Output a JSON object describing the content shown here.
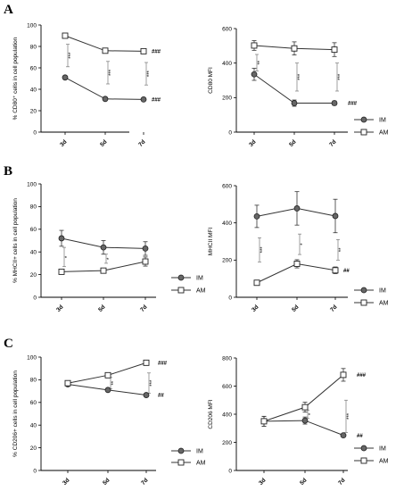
{
  "legend": {
    "im": "IM",
    "am": "AM"
  },
  "chart_data": [
    {
      "id": "A-left",
      "panel": "A",
      "type": "line",
      "ylabel": "% CD80⁺ cells in cell population",
      "ylim": [
        0,
        100
      ],
      "yticks": [
        0,
        20,
        40,
        60,
        80,
        100
      ],
      "categories": [
        "3d",
        "5d",
        "7d"
      ],
      "series": [
        {
          "name": "IM",
          "values": [
            51,
            31,
            30.5
          ],
          "errors": [
            1.5,
            1,
            1
          ],
          "end_label": "###"
        },
        {
          "name": "AM",
          "values": [
            90,
            76,
            75.5
          ],
          "errors": [
            1,
            1,
            1
          ],
          "end_label": "###"
        }
      ],
      "brackets": [
        {
          "at": 0,
          "low": 61,
          "high": 82,
          "label": "***"
        },
        {
          "at": 1,
          "low": 45,
          "high": 66,
          "label": "***"
        },
        {
          "at": 2,
          "low": 44,
          "high": 65,
          "label": "***"
        }
      ],
      "legend_shown": false
    },
    {
      "id": "A-right",
      "panel": "A",
      "type": "line",
      "ylabel": "CD80 MFI",
      "ylim": [
        0,
        600
      ],
      "yticks": [
        0,
        200,
        400,
        600
      ],
      "categories": [
        "3d",
        "5d",
        "7d"
      ],
      "series": [
        {
          "name": "IM",
          "values": [
            335,
            168,
            168
          ],
          "errors": [
            35,
            18,
            12
          ],
          "end_label": "###"
        },
        {
          "name": "AM",
          "values": [
            502,
            485,
            478
          ],
          "errors": [
            28,
            38,
            40
          ],
          "end_label": ""
        }
      ],
      "brackets": [
        {
          "at": 0,
          "low": 355,
          "high": 450,
          "label": "**"
        },
        {
          "at": 1,
          "low": 238,
          "high": 400,
          "label": "***"
        },
        {
          "at": 2,
          "low": 238,
          "high": 400,
          "label": "***"
        }
      ],
      "legend_shown": true
    },
    {
      "id": "B-left",
      "panel": "B",
      "type": "line",
      "ylabel": "% MHCII+ cells in cell population",
      "ylim": [
        0,
        100
      ],
      "yticks": [
        0,
        20,
        40,
        60,
        80,
        100
      ],
      "categories": [
        "3d",
        "5d",
        "7d"
      ],
      "series": [
        {
          "name": "IM",
          "values": [
            52,
            44,
            43
          ],
          "errors": [
            7,
            6,
            6
          ],
          "end_label": ""
        },
        {
          "name": "AM",
          "values": [
            22.5,
            23.5,
            31.5
          ],
          "errors": [
            2,
            2,
            4
          ],
          "end_label": ""
        }
      ],
      "brackets": [
        {
          "at": 0,
          "low": 27,
          "high": 44,
          "label": "*"
        },
        {
          "at": 1,
          "low": 30,
          "high": 38,
          "label": "*"
        },
        {
          "at": 2,
          "low": 0,
          "high": 0,
          "label": ""
        }
      ],
      "legend_shown": true
    },
    {
      "id": "B-right",
      "panel": "B",
      "type": "line",
      "ylabel": "MHCII MFI",
      "ylim": [
        0,
        600
      ],
      "yticks": [
        0,
        200,
        400,
        600
      ],
      "categories": [
        "3d",
        "5d",
        "7d"
      ],
      "series": [
        {
          "name": "IM",
          "values": [
            435,
            478,
            437
          ],
          "errors": [
            60,
            90,
            90
          ],
          "end_label": ""
        },
        {
          "name": "AM",
          "values": [
            78,
            180,
            145
          ],
          "errors": [
            6,
            22,
            18
          ],
          "end_label": "##"
        }
      ],
      "brackets": [
        {
          "at": 0,
          "low": 190,
          "high": 320,
          "label": "***"
        },
        {
          "at": 1,
          "low": 230,
          "high": 340,
          "label": "*"
        },
        {
          "at": 2,
          "low": 200,
          "high": 310,
          "label": "**"
        }
      ],
      "legend_shown": true
    },
    {
      "id": "C-left",
      "panel": "C",
      "type": "line",
      "ylabel": "% CD206+ cells in cell population",
      "ylim": [
        0,
        100
      ],
      "yticks": [
        0,
        20,
        40,
        60,
        80,
        100
      ],
      "categories": [
        "3d",
        "5d",
        "7d"
      ],
      "series": [
        {
          "name": "IM",
          "values": [
            76,
            71,
            66.5
          ],
          "errors": [
            1.5,
            1.5,
            1
          ],
          "end_label": "##"
        },
        {
          "name": "AM",
          "values": [
            77,
            84,
            95
          ],
          "errors": [
            1.5,
            1,
            1
          ],
          "end_label": "###"
        }
      ],
      "brackets": [
        {
          "at": 0,
          "low": 0,
          "high": 0,
          "label": ""
        },
        {
          "at": 1,
          "low": 72,
          "high": 82,
          "label": "**"
        },
        {
          "at": 2,
          "low": 68,
          "high": 86,
          "label": "***"
        }
      ],
      "legend_shown": true
    },
    {
      "id": "C-right",
      "panel": "C",
      "type": "line",
      "ylabel": "CD206 MFI",
      "ylim": [
        0,
        800
      ],
      "yticks": [
        0,
        200,
        400,
        600,
        800
      ],
      "categories": [
        "3d",
        "5d",
        "7d"
      ],
      "series": [
        {
          "name": "IM",
          "values": [
            350,
            355,
            250
          ],
          "errors": [
            35,
            25,
            8
          ],
          "end_label": "##"
        },
        {
          "name": "AM",
          "values": [
            350,
            450,
            680
          ],
          "errors": [
            35,
            35,
            45
          ],
          "end_label": "###"
        }
      ],
      "brackets": [
        {
          "at": 1,
          "low": 370,
          "high": 430,
          "label": "*"
        },
        {
          "at": 2,
          "low": 270,
          "high": 500,
          "label": "***"
        }
      ],
      "legend_shown": true
    }
  ],
  "panel_letters": {
    "A": "A",
    "B": "B",
    "C": "C"
  }
}
